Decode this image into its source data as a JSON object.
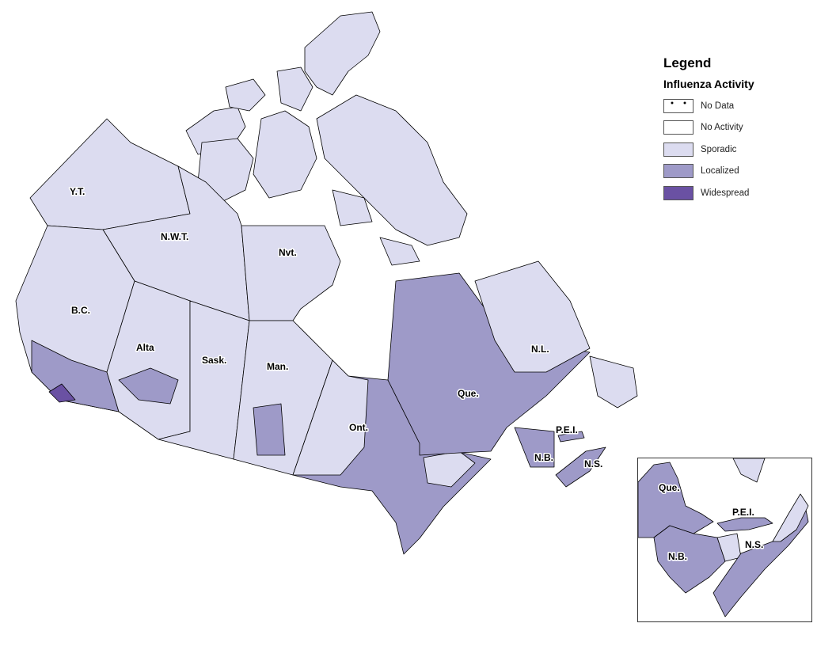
{
  "legend": {
    "title": "Legend",
    "subtitle": "Influenza Activity",
    "items": [
      {
        "label": "No Data",
        "color": "#ffffff",
        "pattern": "dots"
      },
      {
        "label": "No Activity",
        "color": "#ffffff"
      },
      {
        "label": "Sporadic",
        "color": "#dcdcf0"
      },
      {
        "label": "Localized",
        "color": "#9e9ac8"
      },
      {
        "label": "Widespread",
        "color": "#6a51a3"
      }
    ]
  },
  "regions": {
    "yt": {
      "label": "Y.T.",
      "activity": "Sporadic"
    },
    "nwt": {
      "label": "N.W.T.",
      "activity": "Sporadic"
    },
    "nvt": {
      "label": "Nvt.",
      "activity": "Sporadic"
    },
    "bc": {
      "label": "B.C.",
      "activity": "Sporadic"
    },
    "alta": {
      "label": "Alta",
      "activity": "Sporadic"
    },
    "sask": {
      "label": "Sask.",
      "activity": "Sporadic"
    },
    "man": {
      "label": "Man.",
      "activity": "Sporadic"
    },
    "ont": {
      "label": "Ont.",
      "activity": "Localized"
    },
    "que": {
      "label": "Que.",
      "activity": "Localized"
    },
    "nl": {
      "label": "N.L.",
      "activity": "Sporadic"
    },
    "pei": {
      "label": "P.E.I.",
      "activity": "Localized"
    },
    "nb": {
      "label": "N.B.",
      "activity": "Localized"
    },
    "ns": {
      "label": "N.S.",
      "activity": "Localized"
    }
  },
  "inset": {
    "que": "Que.",
    "pei": "P.E.I.",
    "nb": "N.B.",
    "ns": "N.S."
  }
}
